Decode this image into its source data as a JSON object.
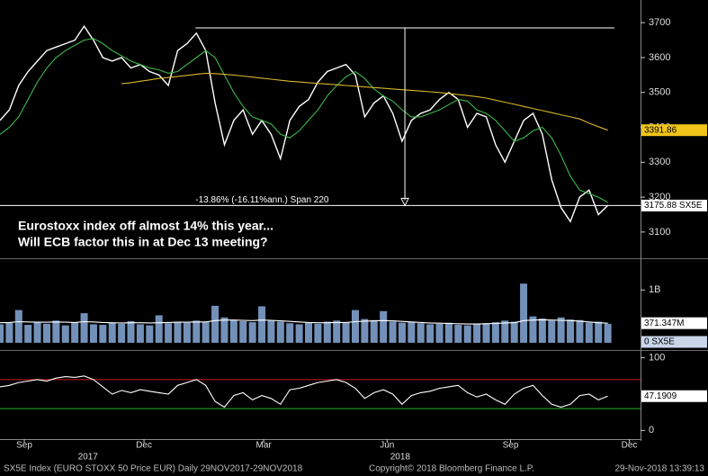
{
  "chart_data": [
    {
      "type": "line",
      "x": [
        0,
        1,
        2,
        3,
        4,
        5,
        6,
        7,
        8,
        9,
        10,
        11,
        12,
        13,
        14,
        15,
        16,
        17,
        18,
        19,
        20,
        21,
        22,
        23,
        24,
        25,
        26,
        27,
        28,
        29,
        30,
        31,
        32,
        33,
        34,
        35,
        36,
        37,
        38,
        39,
        40,
        41,
        42,
        43,
        44,
        45,
        46,
        47,
        48,
        49,
        50,
        51,
        52,
        53,
        54,
        55,
        56,
        57,
        58,
        59,
        60,
        61,
        62,
        63,
        64,
        65
      ],
      "xlim": [
        0,
        68.5
      ],
      "ylim": [
        3030,
        3765
      ],
      "yticks": [
        3100,
        3200,
        3300,
        3400,
        3500,
        3600,
        3700
      ],
      "series": [
        {
          "color": "#ffffff",
          "values": [
            3420,
            3450,
            3520,
            3560,
            3590,
            3620,
            3630,
            3640,
            3650,
            3690,
            3650,
            3600,
            3590,
            3600,
            3570,
            3580,
            3560,
            3550,
            3520,
            3620,
            3640,
            3670,
            3620,
            3470,
            3350,
            3420,
            3450,
            3380,
            3420,
            3380,
            3310,
            3420,
            3460,
            3480,
            3530,
            3560,
            3570,
            3580,
            3550,
            3430,
            3470,
            3490,
            3440,
            3360,
            3420,
            3440,
            3450,
            3480,
            3500,
            3480,
            3400,
            3440,
            3430,
            3350,
            3300,
            3360,
            3420,
            3440,
            3380,
            3250,
            3170,
            3130,
            3200,
            3220,
            3150,
            3175.88
          ]
        },
        {
          "color": "#3cb84a",
          "values": [
            3380,
            3400,
            3430,
            3480,
            3530,
            3570,
            3600,
            3620,
            3635,
            3650,
            3655,
            3640,
            3620,
            3605,
            3590,
            3580,
            3570,
            3565,
            3555,
            3560,
            3580,
            3600,
            3620,
            3600,
            3550,
            3500,
            3460,
            3430,
            3420,
            3410,
            3380,
            3370,
            3390,
            3420,
            3450,
            3490,
            3520,
            3545,
            3560,
            3540,
            3510,
            3490,
            3475,
            3450,
            3430,
            3430,
            3440,
            3450,
            3465,
            3480,
            3475,
            3450,
            3440,
            3420,
            3390,
            3360,
            3370,
            3390,
            3400,
            3370,
            3320,
            3260,
            3220,
            3210,
            3200,
            3185
          ]
        },
        {
          "color": "#d8b42a",
          "values": [
            null,
            null,
            null,
            null,
            null,
            null,
            null,
            null,
            null,
            null,
            null,
            null,
            null,
            3525,
            3528,
            3532,
            3536,
            3540,
            3543,
            3546,
            3549,
            3552,
            3555,
            3554,
            3552,
            3550,
            3547,
            3544,
            3541,
            3538,
            3535,
            3532,
            3530,
            3528,
            3526,
            3524,
            3522,
            3520,
            3518,
            3516,
            3514,
            3512,
            3510,
            3508,
            3506,
            3504,
            3502,
            3500,
            3497,
            3494,
            3491,
            3488,
            3484,
            3478,
            3472,
            3466,
            3460,
            3454,
            3448,
            3442,
            3436,
            3430,
            3424,
            3412,
            3402,
            3391.86
          ]
        }
      ],
      "markers": [
        {
          "value": 3391.86,
          "label": "3391.86",
          "color": "#f0c419"
        },
        {
          "value": 3175.88,
          "label": "3175.88 SX5E",
          "color": "#ffffff"
        }
      ],
      "annotation": {
        "text": "-13.86% (-16.11%ann.) Span 220",
        "top": 3685,
        "bottom": 3175.88,
        "x_start": 20.9,
        "x_arrow": 43.3,
        "x_end": 65.7
      },
      "notes": [
        "Eurostoxx index off almost 14% this year...",
        "Will ECB factor this in at Dec 13 meeting?"
      ]
    },
    {
      "type": "bar",
      "ylim": [
        -86,
        1550
      ],
      "yticks": [
        {
          "value": 1000,
          "label": "1B"
        }
      ],
      "series": [
        {
          "color": "#7391b8",
          "values": [
            350,
            380,
            620,
            340,
            400,
            360,
            420,
            330,
            390,
            560,
            350,
            340,
            380,
            360,
            410,
            350,
            330,
            520,
            370,
            400,
            380,
            420,
            390,
            700,
            480,
            430,
            410,
            390,
            690,
            420,
            400,
            370,
            350,
            380,
            360,
            400,
            420,
            390,
            620,
            450,
            430,
            600,
            400,
            380,
            390,
            370,
            350,
            360,
            380,
            340,
            330,
            360,
            370,
            390,
            420,
            400,
            1120,
            500,
            460,
            420,
            480,
            440,
            430,
            380,
            400,
            360
          ]
        },
        {
          "type": "line",
          "color": "#ffffff",
          "values": [
            380,
            385,
            400,
            395,
            390,
            390,
            395,
            390,
            385,
            400,
            395,
            385,
            380,
            375,
            380,
            380,
            375,
            380,
            385,
            390,
            390,
            395,
            395,
            420,
            430,
            430,
            425,
            420,
            430,
            425,
            415,
            405,
            395,
            385,
            380,
            380,
            385,
            385,
            400,
            410,
            415,
            420,
            415,
            405,
            395,
            385,
            375,
            370,
            365,
            360,
            355,
            355,
            360,
            365,
            375,
            380,
            420,
            430,
            435,
            430,
            425,
            420,
            410,
            395,
            380,
            371.347
          ]
        }
      ],
      "markers": [
        {
          "value": 371.347,
          "label": "371.347M",
          "color": "#ffffff"
        },
        {
          "value": 0,
          "label": "0 SX5E",
          "color": "#c9d6ea"
        }
      ]
    },
    {
      "type": "line",
      "ylim": [
        -12,
        107
      ],
      "yticks": [
        0,
        100
      ],
      "levels": [
        {
          "value": 70,
          "color": "#d11a1a"
        },
        {
          "value": 30,
          "color": "#2fb335"
        }
      ],
      "series": [
        {
          "color": "#ffffff",
          "values": [
            60,
            62,
            66,
            68,
            70,
            68,
            72,
            74,
            73,
            75,
            70,
            60,
            50,
            55,
            52,
            56,
            54,
            52,
            50,
            62,
            66,
            70,
            62,
            40,
            32,
            48,
            52,
            42,
            48,
            44,
            36,
            56,
            58,
            62,
            66,
            68,
            70,
            66,
            58,
            44,
            52,
            56,
            50,
            36,
            48,
            52,
            54,
            58,
            60,
            62,
            52,
            46,
            50,
            42,
            36,
            50,
            58,
            62,
            48,
            36,
            32,
            36,
            48,
            50,
            42,
            47.1909
          ]
        }
      ],
      "markers": [
        {
          "value": 47.1909,
          "label": "47.1909",
          "color": "#ffffff"
        }
      ],
      "xticks": [
        {
          "value": 2.6,
          "label": "Sep"
        },
        {
          "value": 15.4,
          "label": "Dec"
        },
        {
          "value": 28.2,
          "label": "Mar"
        },
        {
          "value": 41.4,
          "label": "Jun"
        },
        {
          "value": 54.6,
          "label": "Sep"
        },
        {
          "value": 67.3,
          "label": "Dec"
        }
      ],
      "year_ticks": [
        {
          "value": 9.4,
          "label": "2017"
        },
        {
          "value": 42.8,
          "label": "2018"
        }
      ]
    }
  ],
  "footer": {
    "left": "SX5E Index (EURO STOXX 50 Price EUR)  Daily 29NOV2017-29NOV2018",
    "center": "Copyright© 2018 Bloomberg Finance L.P.",
    "right": "29-Nov-2018 13:39:13"
  }
}
